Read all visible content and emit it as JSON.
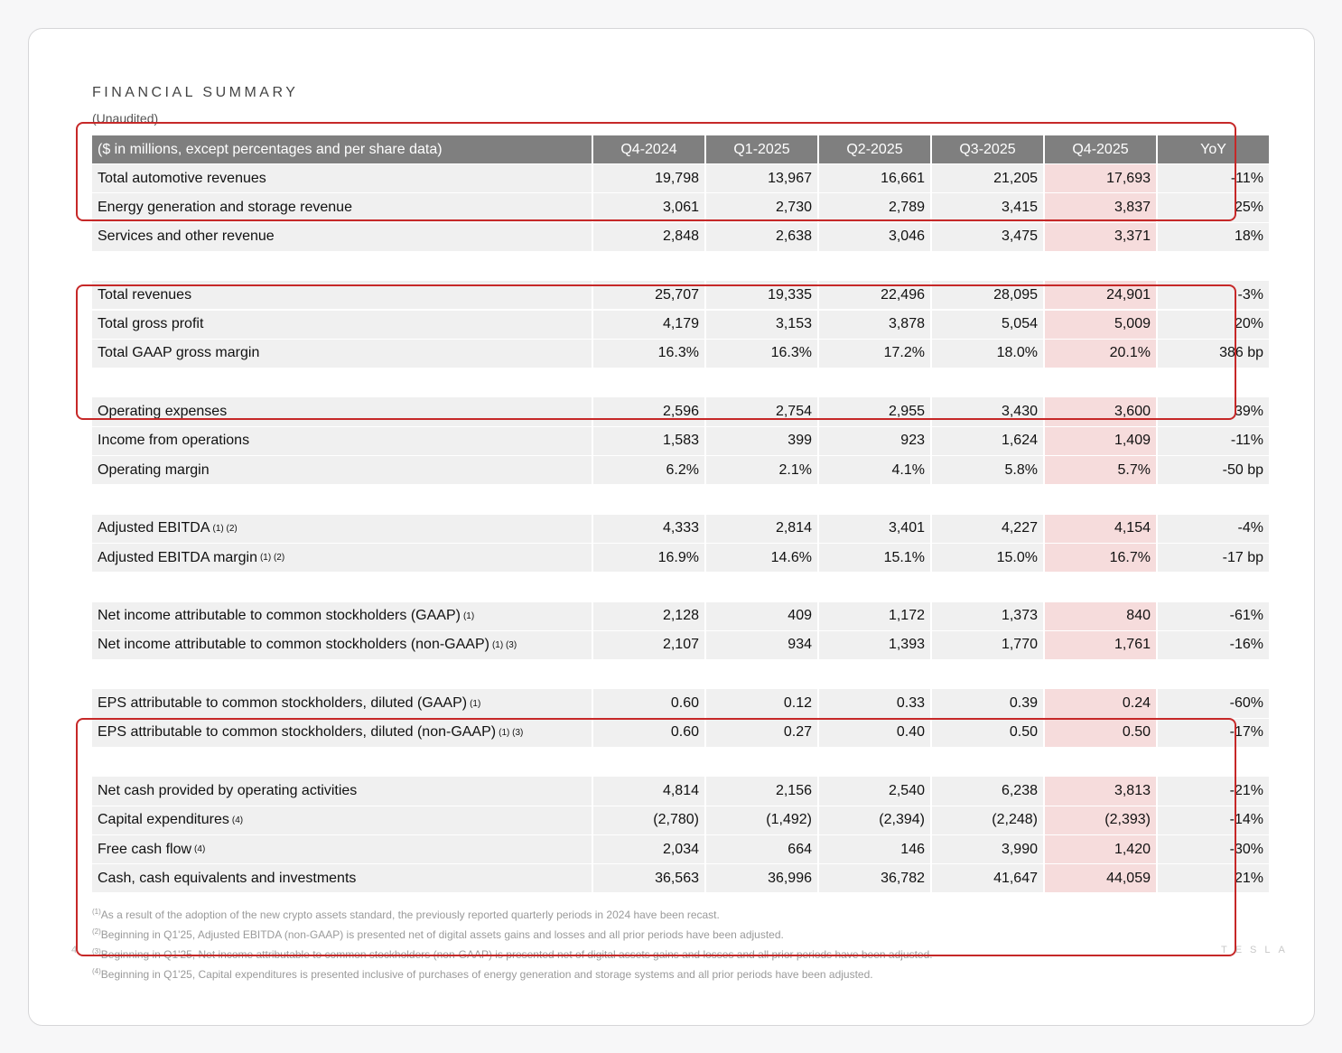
{
  "header": {
    "title": "FINANCIAL SUMMARY",
    "subtitle": "(Unaudited)"
  },
  "table": {
    "columns": [
      "($ in millions, except percentages and per share data)",
      "Q4-2024",
      "Q1-2025",
      "Q2-2025",
      "Q3-2025",
      "Q4-2025",
      "YoY"
    ],
    "groups": [
      [
        {
          "label": "Total automotive revenues",
          "values": [
            "19,798",
            "13,967",
            "16,661",
            "21,205",
            "17,693",
            "-11%"
          ]
        },
        {
          "label": "Energy generation and storage revenue",
          "values": [
            "3,061",
            "2,730",
            "2,789",
            "3,415",
            "3,837",
            "25%"
          ]
        },
        {
          "label": "Services and other revenue",
          "values": [
            "2,848",
            "2,638",
            "3,046",
            "3,475",
            "3,371",
            "18%"
          ]
        }
      ],
      [
        {
          "label": "Total revenues",
          "values": [
            "25,707",
            "19,335",
            "22,496",
            "28,095",
            "24,901",
            "-3%"
          ]
        },
        {
          "label": "Total gross profit",
          "values": [
            "4,179",
            "3,153",
            "3,878",
            "5,054",
            "5,009",
            "20%"
          ]
        },
        {
          "label": "Total GAAP gross margin",
          "values": [
            "16.3%",
            "16.3%",
            "17.2%",
            "18.0%",
            "20.1%",
            "386 bp"
          ]
        }
      ],
      [
        {
          "label": "Operating expenses",
          "values": [
            "2,596",
            "2,754",
            "2,955",
            "3,430",
            "3,600",
            "39%"
          ]
        },
        {
          "label": "Income from operations",
          "values": [
            "1,583",
            "399",
            "923",
            "1,624",
            "1,409",
            "-11%"
          ]
        },
        {
          "label": "Operating margin",
          "values": [
            "6.2%",
            "2.1%",
            "4.1%",
            "5.8%",
            "5.7%",
            "-50 bp"
          ]
        }
      ],
      [
        {
          "label": "Adjusted EBITDA",
          "notes": "(1) (2)",
          "values": [
            "4,333",
            "2,814",
            "3,401",
            "4,227",
            "4,154",
            "-4%"
          ]
        },
        {
          "label": "Adjusted EBITDA margin",
          "notes": "(1) (2)",
          "values": [
            "16.9%",
            "14.6%",
            "15.1%",
            "15.0%",
            "16.7%",
            "-17 bp"
          ]
        }
      ],
      [
        {
          "label": "Net income attributable to common stockholders (GAAP)",
          "notes": "(1)",
          "values": [
            "2,128",
            "409",
            "1,172",
            "1,373",
            "840",
            "-61%"
          ]
        },
        {
          "label": "Net income attributable to common stockholders (non-GAAP)",
          "notes": "(1) (3)",
          "values": [
            "2,107",
            "934",
            "1,393",
            "1,770",
            "1,761",
            "-16%"
          ]
        }
      ],
      [
        {
          "label": "EPS attributable to common stockholders, diluted (GAAP)",
          "notes": "(1)",
          "values": [
            "0.60",
            "0.12",
            "0.33",
            "0.39",
            "0.24",
            "-60%"
          ]
        },
        {
          "label": "EPS attributable to common stockholders, diluted (non-GAAP)",
          "notes": "(1) (3)",
          "values": [
            "0.60",
            "0.27",
            "0.40",
            "0.50",
            "0.50",
            "-17%"
          ]
        }
      ],
      [
        {
          "label": "Net cash provided by operating activities",
          "values": [
            "4,814",
            "2,156",
            "2,540",
            "6,238",
            "3,813",
            "-21%"
          ]
        },
        {
          "label": "Capital expenditures",
          "notes": "(4)",
          "values": [
            "(2,780)",
            "(1,492)",
            "(2,394)",
            "(2,248)",
            "(2,393)",
            "-14%"
          ]
        },
        {
          "label": "Free cash flow",
          "notes": "(4)",
          "values": [
            "2,034",
            "664",
            "146",
            "3,990",
            "1,420",
            "-30%"
          ]
        },
        {
          "label": "Cash, cash equivalents and investments",
          "values": [
            "36,563",
            "36,996",
            "36,782",
            "41,647",
            "44,059",
            "21%"
          ]
        }
      ]
    ]
  },
  "footnotes": [
    {
      "marker": "(1)",
      "text": "As a result of the adoption of the new crypto assets standard, the previously reported quarterly periods in 2024 have been recast."
    },
    {
      "marker": "(2)",
      "text": "Beginning in Q1'25, Adjusted EBITDA (non-GAAP) is presented net of digital assets gains and losses and all prior periods have been adjusted."
    },
    {
      "marker": "(3)",
      "text": "Beginning in Q1'25, Net income attributable to common stockholders (non-GAAP) is presented net of digital assets gains and losses and all prior periods have been adjusted."
    },
    {
      "marker": "(4)",
      "text": "Beginning in Q1'25, Capital expenditures is presented inclusive of purchases of energy generation and storage systems and all prior periods have been adjusted."
    }
  ],
  "page_number": "4",
  "logo": "TESLA"
}
